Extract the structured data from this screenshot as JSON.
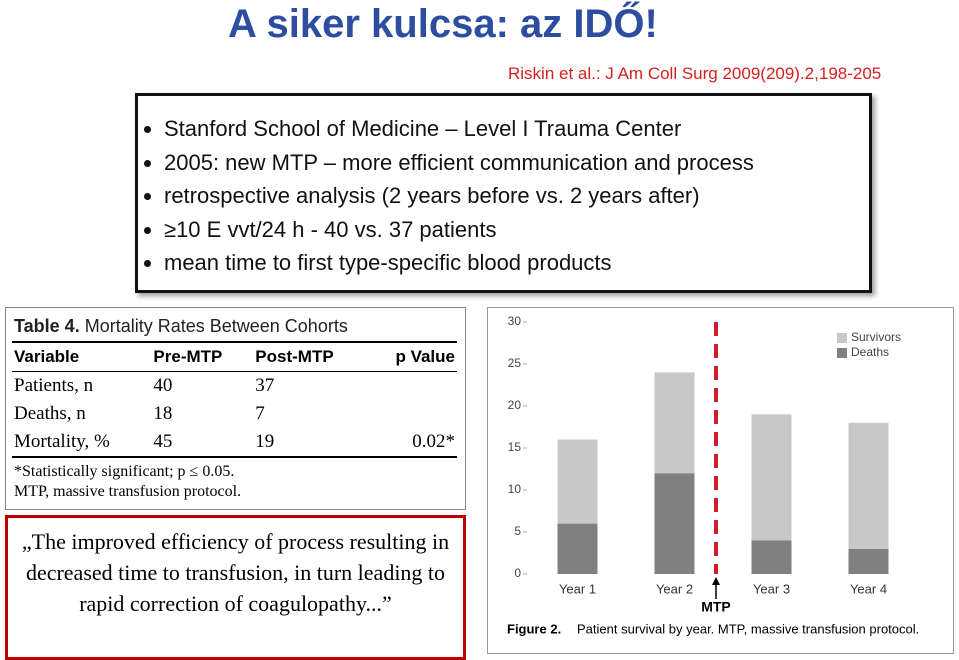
{
  "title": "A siker kulcsa: az IDŐ!",
  "citation": "Riskin et al.: J Am Coll Surg 2009(209).2,198-205",
  "bullets": [
    "Stanford School of Medicine – Level I Trauma Center",
    "2005: new MTP – more efficient communication and process",
    "retrospective analysis (2 years before vs. 2 years after)",
    "≥10 E vvt/24 h  -   40 vs. 37 patients",
    "mean time to first type-specific blood products"
  ],
  "table": {
    "label": "Table 4.",
    "caption": "Mortality Rates Between Cohorts",
    "header": [
      "Variable",
      "Pre-MTP",
      "Post-MTP",
      "p Value"
    ],
    "rows": [
      [
        "Patients, n",
        "40",
        "37",
        ""
      ],
      [
        "Deaths, n",
        "18",
        "7",
        ""
      ],
      [
        "Mortality, %",
        "45",
        "19",
        "0.02*"
      ]
    ],
    "footnotes": [
      "*Statistically significant; p ≤ 0.05.",
      "MTP, massive transfusion protocol."
    ]
  },
  "quote": "„The improved efficiency of process resulting in decreased time to transfusion, in turn leading to rapid correction of coagulopathy...”",
  "chart_data": {
    "type": "bar",
    "stacked": true,
    "categories": [
      "Year 1",
      "Year 2",
      "Year 3",
      "Year 4"
    ],
    "series": [
      {
        "name": "Deaths",
        "color": "#808080",
        "values": [
          6,
          12,
          4,
          3
        ]
      },
      {
        "name": "Survivors",
        "color": "#c8c8c8",
        "values": [
          10,
          12,
          15,
          15
        ]
      }
    ],
    "ylim": [
      0,
      30
    ],
    "yticks": [
      0,
      5,
      10,
      15,
      20,
      25,
      30
    ],
    "annotation": "MTP",
    "annotation_color": "#d0202a",
    "caption_label": "Figure 2.",
    "caption": "Patient survival by year. MTP, massive transfusion protocol."
  }
}
